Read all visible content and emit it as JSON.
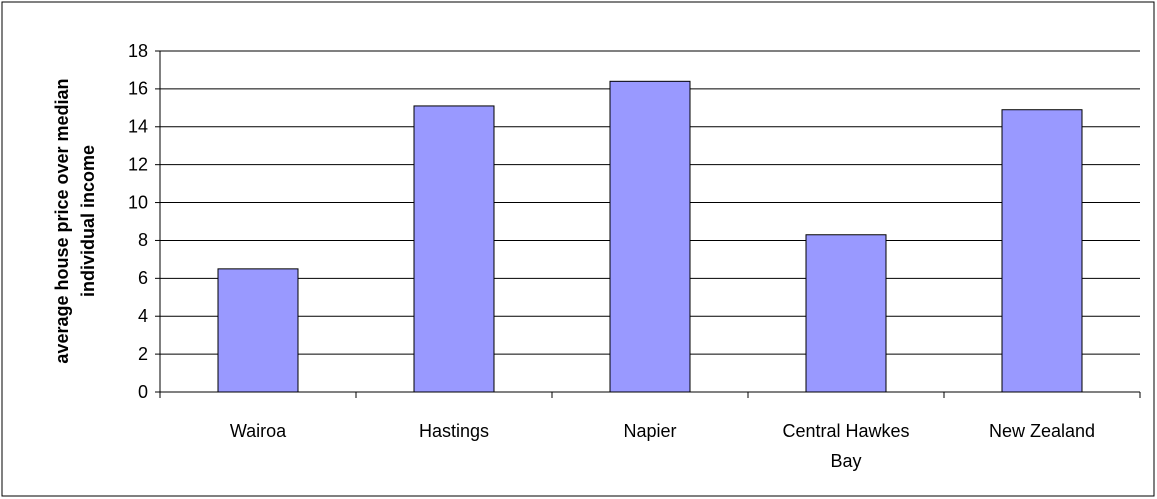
{
  "chart_data": {
    "type": "bar",
    "ylabel": "average house price over median individual income",
    "categories": [
      "Wairoa",
      "Hastings",
      "Napier",
      "Central Hawkes Bay",
      "New Zealand"
    ],
    "values": [
      6.5,
      15.1,
      16.4,
      8.3,
      14.9
    ],
    "color": "#9999ff",
    "ylim": [
      0,
      18
    ],
    "yticks": [
      0,
      2,
      4,
      6,
      8,
      10,
      12,
      14,
      16,
      18
    ],
    "grid": true
  }
}
